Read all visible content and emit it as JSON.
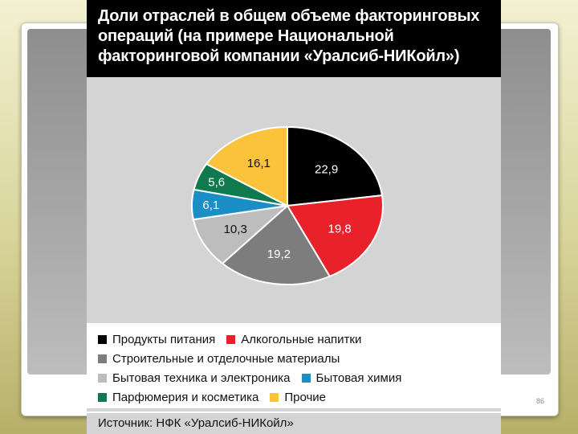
{
  "slide": {
    "page_number": "86"
  },
  "chart_data": {
    "type": "pie",
    "title_lines": [
      "Доли отраслей в общем объеме факторинговых",
      "операций (на примере Национальной",
      "факторинговой компании «Уралсиб-НИКойл»)"
    ],
    "slices": [
      {
        "label": "Продукты питания",
        "value": 22.9,
        "display": "22,9",
        "color": "#000000",
        "text_color": "#ffffff"
      },
      {
        "label": "Алкогольные напитки",
        "value": 19.8,
        "display": "19,8",
        "color": "#e8212b",
        "text_color": "#ffffff"
      },
      {
        "label": "Строительные и отделочные материалы",
        "value": 19.2,
        "display": "19,2",
        "color": "#7d7d7d",
        "text_color": "#ffffff"
      },
      {
        "label": "Бытовая техника и электроника",
        "value": 10.3,
        "display": "10,3",
        "color": "#bdbdbd",
        "text_color": "#111111"
      },
      {
        "label": "Бытовая химия",
        "value": 6.1,
        "display": "6,1",
        "color": "#1c8ec6",
        "text_color": "#ffffff"
      },
      {
        "label": "Парфюмерия и косметика",
        "value": 5.6,
        "display": "5,6",
        "color": "#0f7a4e",
        "text_color": "#ffffff"
      },
      {
        "label": "Прочие",
        "value": 16.1,
        "display": "16,1",
        "color": "#fbc23c",
        "text_color": "#111111"
      }
    ],
    "legend": {
      "rows": [
        [
          0,
          1
        ],
        [
          2
        ],
        [
          3,
          4
        ],
        [
          5,
          6
        ]
      ]
    },
    "source": "Источник: НФК «Уралсиб-НИКойл»"
  }
}
